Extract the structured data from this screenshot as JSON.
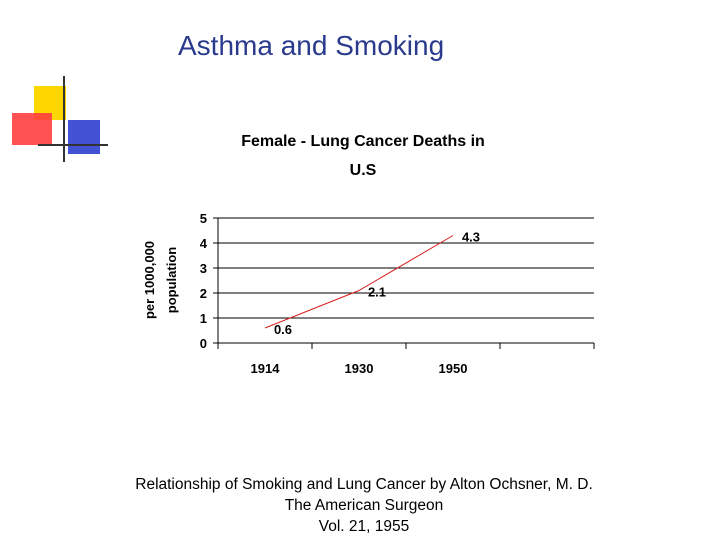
{
  "slide": {
    "title": "Asthma and Smoking",
    "caption_lines": [
      "Relationship of Smoking and Lung Cancer  by Alton Ochsner, M. D.",
      "The American Surgeon",
      "Vol. 21, 1955"
    ],
    "colors": {
      "title": "#2a3a8c",
      "line": "#d62020",
      "yellow": "#ffd700",
      "red": "#ff3b3b",
      "blue": "#2233cc"
    }
  },
  "chart_data": {
    "type": "line",
    "title_lines": [
      "Female - Lung Cancer Deaths in",
      "U.S"
    ],
    "ylabel_lines": [
      "per 1000,000",
      "population"
    ],
    "xlabel": "",
    "categories": [
      "1914",
      "1930",
      "1950"
    ],
    "values": [
      0.6,
      2.1,
      4.3
    ],
    "data_labels": [
      "0.6",
      "2.1",
      "4.3"
    ],
    "ylim": [
      0,
      5
    ],
    "y_ticks": [
      "0",
      "1",
      "2",
      "3",
      "4",
      "5"
    ],
    "grid": true,
    "legend": "none"
  }
}
